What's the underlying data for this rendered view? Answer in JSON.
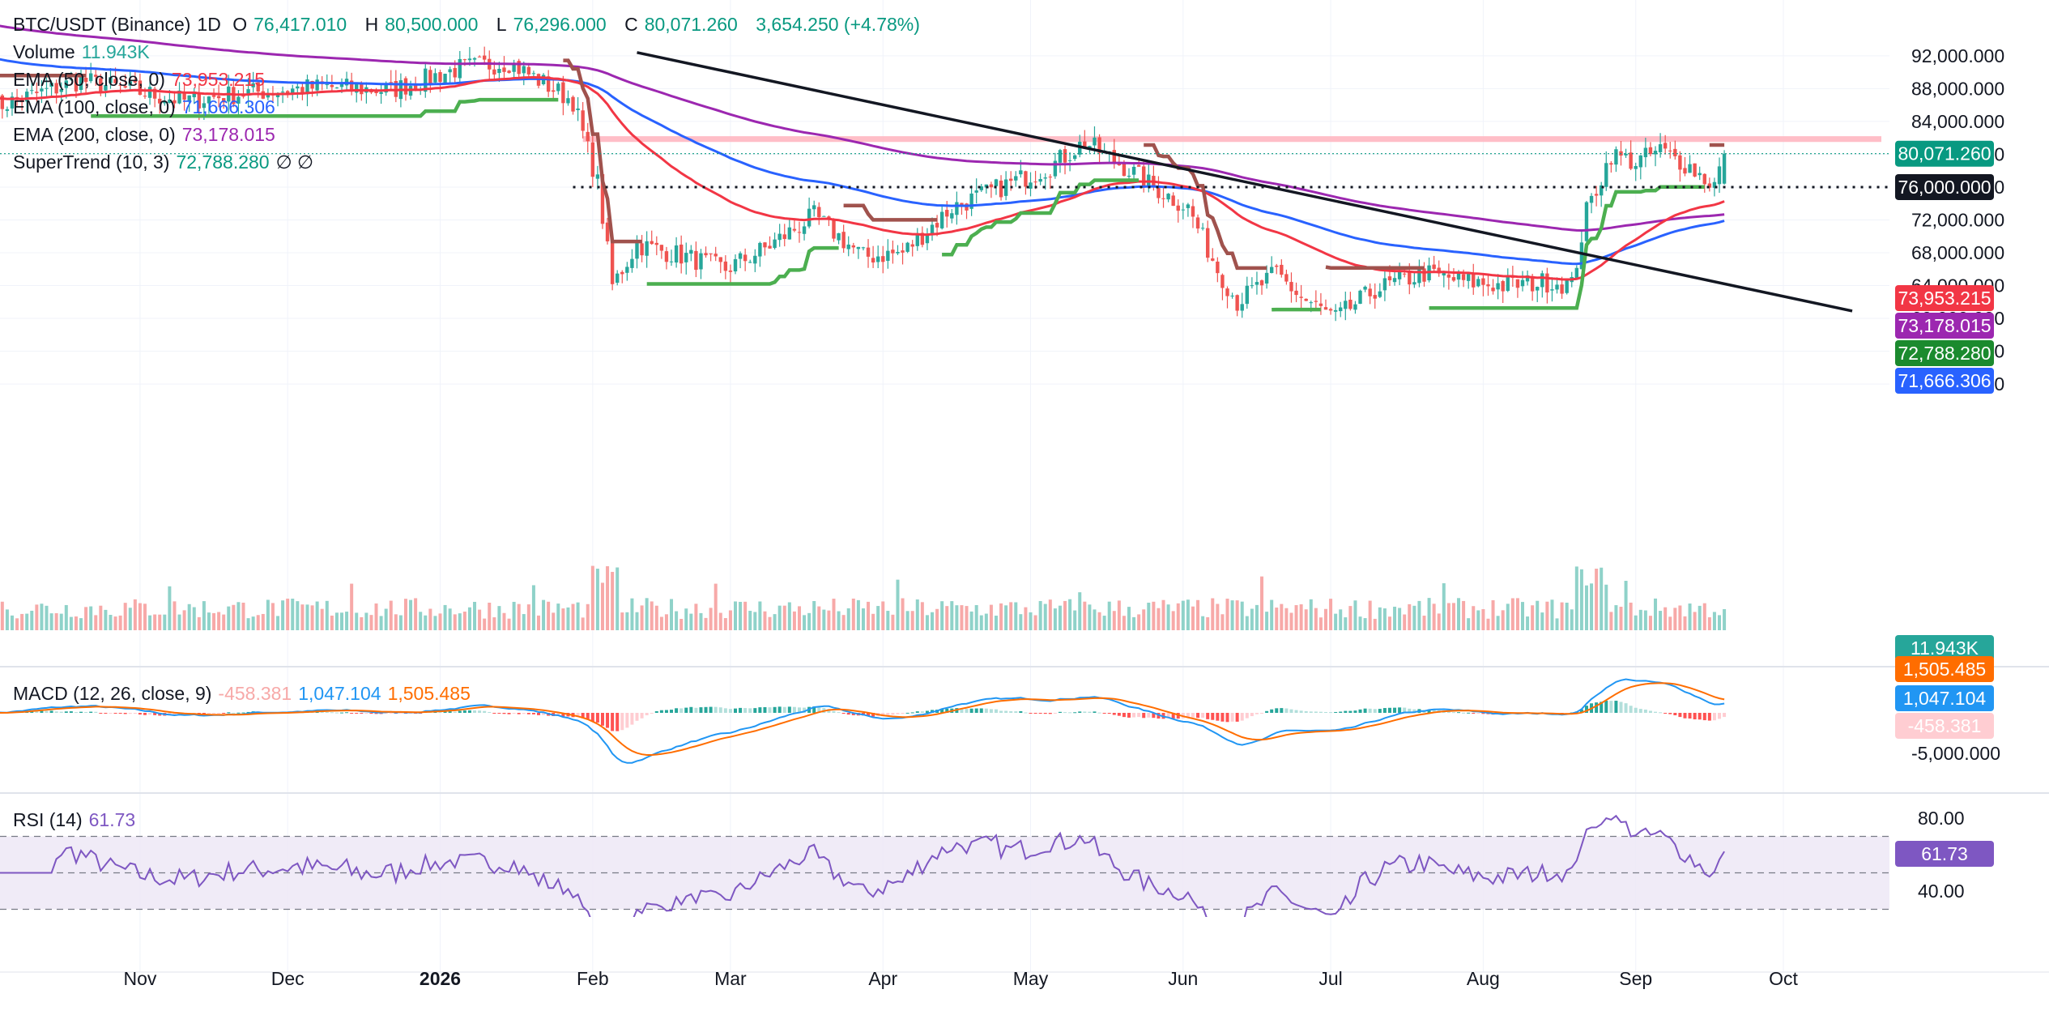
{
  "header": {
    "symbol": "BTC/USDT (Binance)",
    "interval": "1D",
    "open_label": "O",
    "open": "76,417.010",
    "high_label": "H",
    "high": "80,500.000",
    "low_label": "L",
    "low": "76,296.000",
    "close_label": "C",
    "close": "80,071.260",
    "change": "3,654.250 (+4.78%)"
  },
  "legend": {
    "volume_label": "Volume",
    "volume_value": "11.943K",
    "ema50_label": "EMA (50, close, 0)",
    "ema50_value": "73,953.215",
    "ema100_label": "EMA (100, close, 0)",
    "ema100_value": "71,666.306",
    "ema200_label": "EMA (200, close, 0)",
    "ema200_value": "73,178.015",
    "supertrend_label": "SuperTrend (10, 3)",
    "supertrend_value": "72,788.280",
    "supertrend_extra": "∅  ∅",
    "macd_label": "MACD (12, 26, close, 9)",
    "macd_hist": "-458.381",
    "macd_line": "1,047.104",
    "macd_signal": "1,505.485",
    "rsi_label": "RSI (14)",
    "rsi_value": "61.73"
  },
  "colors": {
    "up": "#26a69a",
    "down": "#ef5350",
    "ema50": "#f23645",
    "ema100": "#2962ff",
    "ema200": "#9c27b0",
    "supertrend_up": "#4caf50",
    "supertrend_down": "#a0524d",
    "resistance_zone": "#ffb3bd",
    "macd_line": "#2196f3",
    "signal_line": "#ff6d00",
    "rsi_line": "#7e57c2",
    "rsi_band": "#ede7f6"
  },
  "tags": {
    "last_price": "80,071.260",
    "level": "76,000.000",
    "ema50": "73,953.215",
    "ema200": "73,178.015",
    "supertrend": "72,788.280",
    "ema100": "71,666.306",
    "volume": "11.943K",
    "macd_signal": "1,505.485",
    "macd_line": "1,047.104",
    "macd_hist": "-458.381",
    "rsi": "61.73"
  },
  "chart_data": {
    "type": "candlestick",
    "price_axis_ticks": [
      "92,000.000",
      "88,000.000",
      "84,000.000",
      "80,000.000",
      "76,000.000",
      "72,000.000",
      "68,000.000",
      "64,000.000",
      "60,000.000",
      "56,000.000",
      "52,000.000"
    ],
    "price_ylim": [
      52000,
      92000
    ],
    "macd_axis_ticks": [
      "-5,000.000"
    ],
    "rsi_axis_ticks": [
      "80.00",
      "40.00"
    ],
    "rsi_levels": [
      70,
      50,
      30
    ],
    "x_tick_labels": [
      "Nov",
      "Dec",
      "2026",
      "Feb",
      "Mar",
      "Apr",
      "May",
      "Jun",
      "Jul",
      "Aug",
      "Sep",
      "Oct"
    ],
    "horizontal_level": 76000,
    "resistance_zone": [
      81500,
      82200
    ],
    "trendline": {
      "start": {
        "date": "2026-02-10",
        "price": 92400
      },
      "end": {
        "date": "2026-10-15",
        "price": 60900
      }
    },
    "anchors": [
      {
        "t": "2025-10-01",
        "c": 85500
      },
      {
        "t": "2025-10-20",
        "c": 89000
      },
      {
        "t": "2025-11-10",
        "c": 86500
      },
      {
        "t": "2025-11-23",
        "c": 87500
      },
      {
        "t": "2025-12-08",
        "c": 88200
      },
      {
        "t": "2025-12-22",
        "c": 87800
      },
      {
        "t": "2026-01-05",
        "c": 90500
      },
      {
        "t": "2026-01-15",
        "c": 91200
      },
      {
        "t": "2026-01-28",
        "c": 86500
      },
      {
        "t": "2026-02-02",
        "c": 76500
      },
      {
        "t": "2026-02-05",
        "c": 64000
      },
      {
        "t": "2026-02-10",
        "c": 69000
      },
      {
        "t": "2026-02-20",
        "c": 67500
      },
      {
        "t": "2026-02-28",
        "c": 66000
      },
      {
        "t": "2026-03-08",
        "c": 68500
      },
      {
        "t": "2026-03-18",
        "c": 72500
      },
      {
        "t": "2026-03-28",
        "c": 67500
      },
      {
        "t": "2026-04-05",
        "c": 68000
      },
      {
        "t": "2026-04-15",
        "c": 73500
      },
      {
        "t": "2026-04-25",
        "c": 76000
      },
      {
        "t": "2026-05-05",
        "c": 78500
      },
      {
        "t": "2026-05-12",
        "c": 81500
      },
      {
        "t": "2026-05-20",
        "c": 78500
      },
      {
        "t": "2026-05-26",
        "c": 76000
      },
      {
        "t": "2026-06-02",
        "c": 73500
      },
      {
        "t": "2026-06-08",
        "c": 66000
      },
      {
        "t": "2026-06-12",
        "c": 62000
      },
      {
        "t": "2026-06-20",
        "c": 65500
      },
      {
        "t": "2026-06-25",
        "c": 62500
      },
      {
        "t": "2026-07-02",
        "c": 60000
      },
      {
        "t": "2026-07-10",
        "c": 63500
      },
      {
        "t": "2026-07-20",
        "c": 65500
      },
      {
        "t": "2026-07-28",
        "c": 64500
      },
      {
        "t": "2026-08-05",
        "c": 64000
      },
      {
        "t": "2026-08-15",
        "c": 64500
      },
      {
        "t": "2026-08-19",
        "c": 64000
      },
      {
        "t": "2026-08-22",
        "c": 73000
      },
      {
        "t": "2026-08-27",
        "c": 80000
      },
      {
        "t": "2026-09-01",
        "c": 79000
      },
      {
        "t": "2026-09-06",
        "c": 80500
      },
      {
        "t": "2026-09-12",
        "c": 78500
      },
      {
        "t": "2026-09-15",
        "c": 77000
      },
      {
        "t": "2026-09-17",
        "c": 76300
      },
      {
        "t": "2026-09-19",
        "c": 80071
      }
    ],
    "last_close": 80071.26
  }
}
